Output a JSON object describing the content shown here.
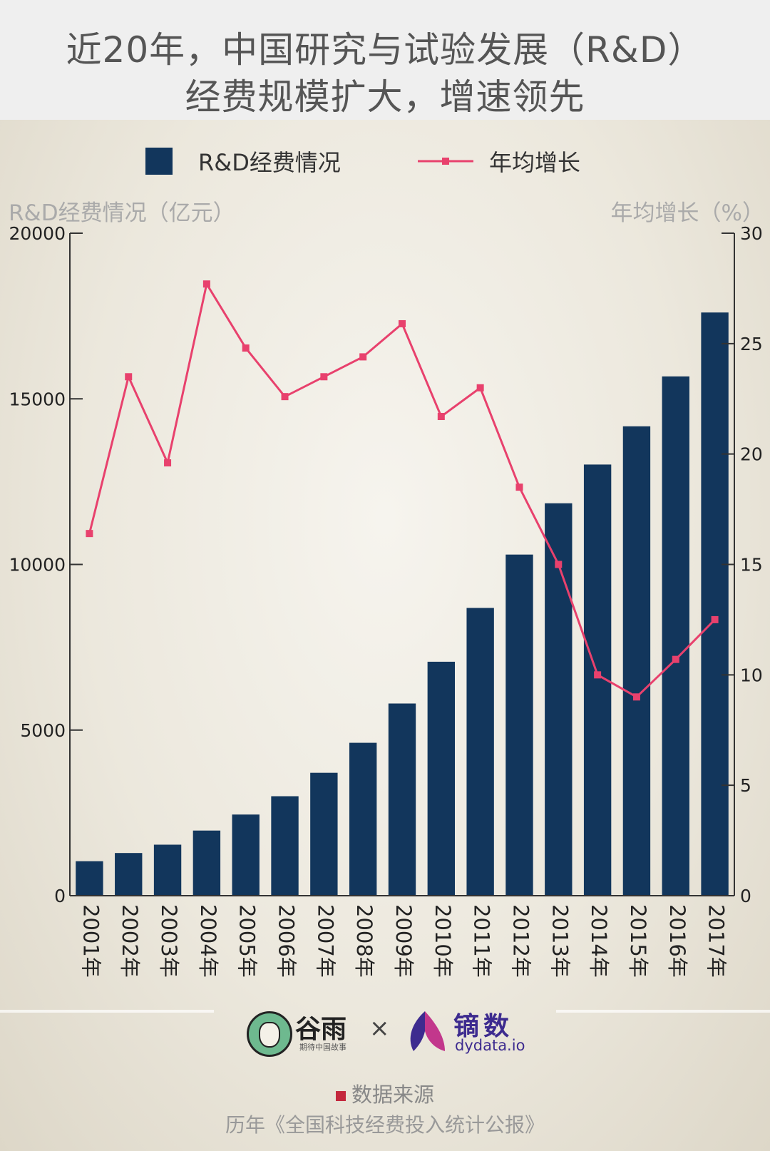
{
  "header": {
    "title_line1": "近20年，中国研究与试验发展（R&D）",
    "title_line2": "经费规模扩大，增速领先"
  },
  "legend": {
    "bar_label": "R&D经费情况",
    "line_label": "年均增长"
  },
  "colors": {
    "bar": "#12365c",
    "line": "#e8416d",
    "axis": "#333333",
    "source_marker": "#c4283d"
  },
  "chart_data": {
    "type": "bar",
    "categories": [
      "2001年",
      "2002年",
      "2003年",
      "2004年",
      "2005年",
      "2006年",
      "2007年",
      "2008年",
      "2009年",
      "2010年",
      "2011年",
      "2012年",
      "2013年",
      "2014年",
      "2015年",
      "2016年",
      "2017年"
    ],
    "series": [
      {
        "name": "R&D经费情况",
        "type": "bar",
        "axis": "left",
        "values": [
          1042,
          1288,
          1540,
          1966,
          2450,
          3003,
          3710,
          4616,
          5802,
          7063,
          8687,
          10298,
          11847,
          13016,
          14170,
          15677,
          17606
        ]
      },
      {
        "name": "年均增长",
        "type": "line",
        "axis": "right",
        "values": [
          16.4,
          23.5,
          19.6,
          27.7,
          24.8,
          22.6,
          23.5,
          24.4,
          25.9,
          21.7,
          23.0,
          18.5,
          15.0,
          10.0,
          9.0,
          10.7,
          12.5
        ]
      }
    ],
    "ylabel_left": "R&D经费情况（亿元）",
    "ylabel_right": "年均增长（%）",
    "ylim_left": [
      0,
      20000
    ],
    "ylim_right": [
      0,
      30
    ],
    "yticks_left": [
      "0",
      "5000",
      "10000",
      "15000",
      "20000"
    ],
    "yticks_right": [
      "0",
      "5",
      "10",
      "15",
      "20",
      "25",
      "30"
    ],
    "ytick_values_left": [
      0,
      5000,
      10000,
      15000,
      20000
    ],
    "ytick_values_right": [
      0,
      5,
      10,
      15,
      20,
      25,
      30
    ]
  },
  "branding": {
    "guyu_name": "谷雨",
    "guyu_tagline": "期待中国故事",
    "cross": "×",
    "dydata_name": "镝数",
    "dydata_url": "dydata.io"
  },
  "footer": {
    "source_label": "数据来源",
    "source_text": "历年《全国科技经费投入统计公报》"
  }
}
